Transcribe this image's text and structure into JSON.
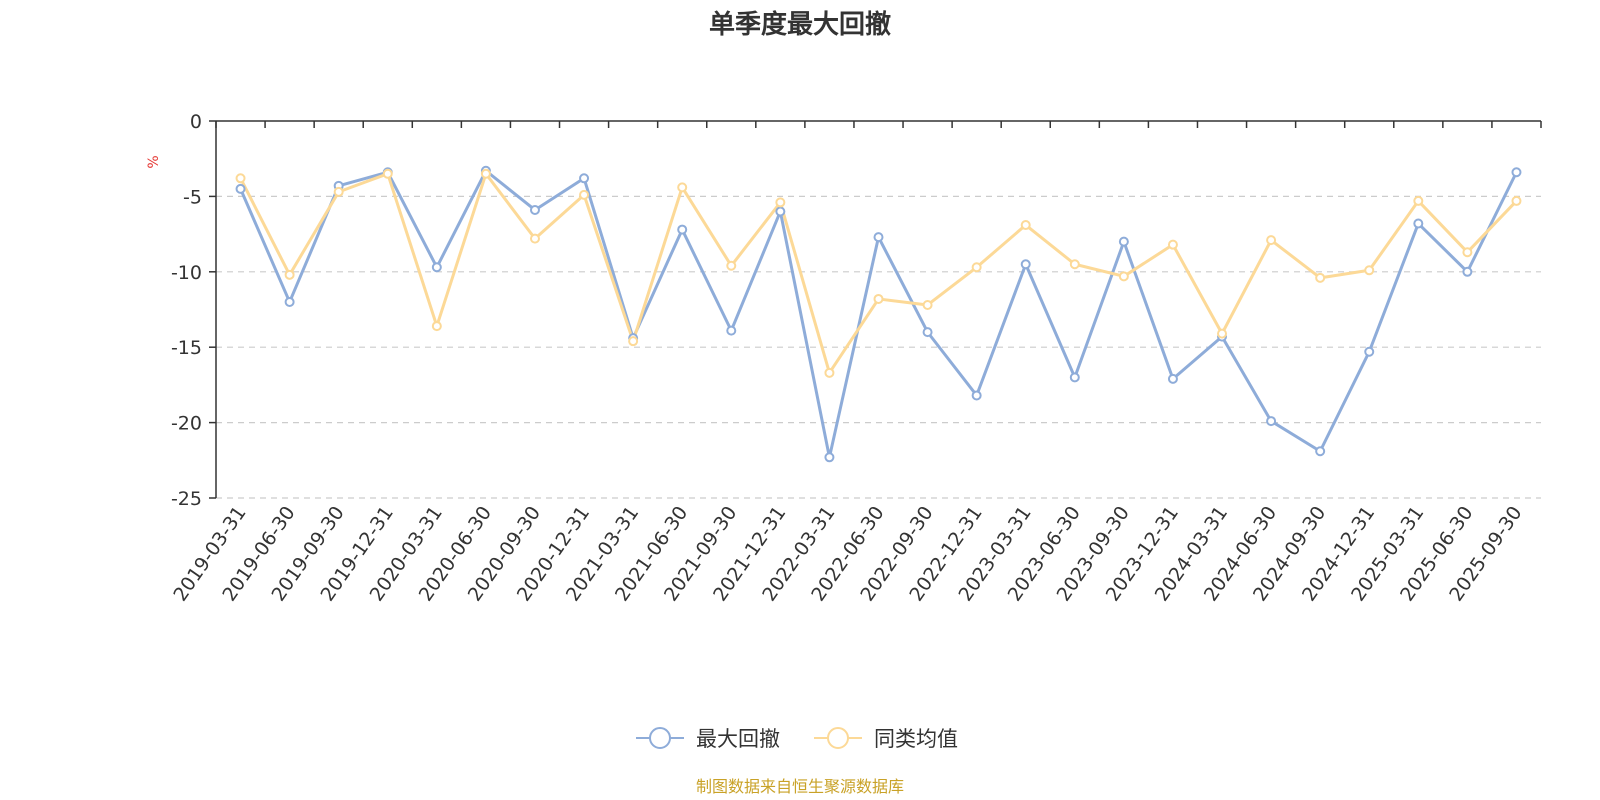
{
  "chart_data": {
    "type": "line",
    "title": "单季度最大回撤",
    "ylabel": "%",
    "xlabel": "",
    "ylim": [
      -25,
      0
    ],
    "yticks": [
      0,
      -5,
      -10,
      -15,
      -20,
      -25
    ],
    "grid": true,
    "legend_position": "bottom",
    "categories": [
      "2019-03-31",
      "2019-06-30",
      "2019-09-30",
      "2019-12-31",
      "2020-03-31",
      "2020-06-30",
      "2020-09-30",
      "2020-12-31",
      "2021-03-31",
      "2021-06-30",
      "2021-09-30",
      "2021-12-31",
      "2022-03-31",
      "2022-06-30",
      "2022-09-30",
      "2022-12-31",
      "2023-03-31",
      "2023-06-30",
      "2023-09-30",
      "2023-12-31",
      "2024-03-31",
      "2024-06-30",
      "2024-09-30",
      "2024-12-31",
      "2025-03-31",
      "2025-06-30",
      "2025-09-30"
    ],
    "series": [
      {
        "name": "最大回撤",
        "color": "#8eacd9",
        "values": [
          -4.5,
          -12.0,
          -4.3,
          -3.4,
          -9.7,
          -3.3,
          -5.9,
          -3.8,
          -14.4,
          -7.2,
          -13.9,
          -6.0,
          -22.3,
          -7.7,
          -14.0,
          -18.2,
          -9.5,
          -17.0,
          -8.0,
          -17.1,
          -14.3,
          -19.9,
          -21.9,
          -15.3,
          -6.8,
          -10.0,
          -3.4
        ]
      },
      {
        "name": "同类均值",
        "color": "#fcd997",
        "values": [
          -3.8,
          -10.2,
          -4.7,
          -3.5,
          -13.6,
          -3.5,
          -7.8,
          -4.9,
          -14.6,
          -4.4,
          -9.6,
          -5.4,
          -16.7,
          -11.8,
          -12.2,
          -9.7,
          -6.9,
          -9.5,
          -10.3,
          -8.2,
          -14.1,
          -7.9,
          -10.4,
          -9.9,
          -5.3,
          -8.7,
          -5.3
        ]
      }
    ],
    "source_text": "制图数据来自恒生聚源数据库",
    "colors": {
      "axis": "#333333",
      "grid": "#cccccc",
      "unit": "#e53935",
      "source": "#c9a227"
    }
  }
}
